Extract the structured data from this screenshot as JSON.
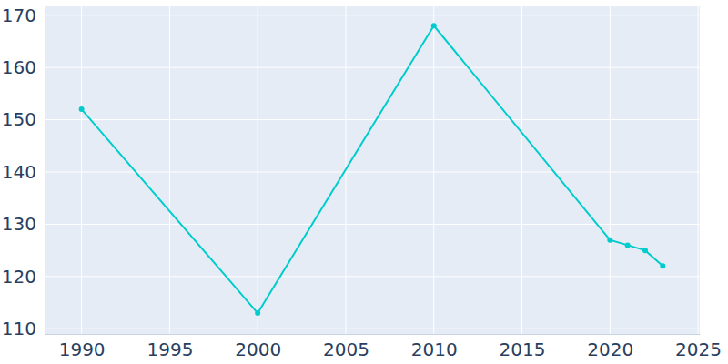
{
  "chart_data": {
    "type": "line",
    "x": [
      1990,
      2000,
      2010,
      2020,
      2021,
      2022,
      2023
    ],
    "values": [
      152,
      113,
      168,
      127,
      126,
      125,
      122
    ],
    "color": "#00cccc",
    "marker": "circle",
    "xlim": [
      1987.9,
      2025.1
    ],
    "xticks": [
      1990,
      1995,
      2000,
      2005,
      2010,
      2015,
      2020,
      2025
    ],
    "ylim": [
      109,
      171.7
    ],
    "yticks": [
      110,
      120,
      130,
      140,
      150,
      160,
      170
    ],
    "grid": true
  }
}
